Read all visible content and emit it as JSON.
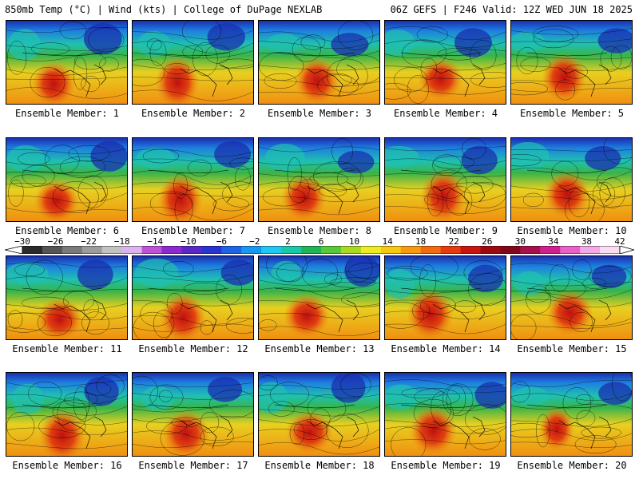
{
  "header": {
    "left": "850mb Temp (°C) | Wind (kts) | College of DuPage NEXLAB",
    "right": "06Z GEFS | F246 Valid: 12Z WED JUN 18 2025"
  },
  "panels": [
    {
      "label": "Ensemble Member: 1"
    },
    {
      "label": "Ensemble Member: 2"
    },
    {
      "label": "Ensemble Member: 3"
    },
    {
      "label": "Ensemble Member: 4"
    },
    {
      "label": "Ensemble Member: 5"
    },
    {
      "label": "Ensemble Member: 6"
    },
    {
      "label": "Ensemble Member: 7"
    },
    {
      "label": "Ensemble Member: 8"
    },
    {
      "label": "Ensemble Member: 9"
    },
    {
      "label": "Ensemble Member: 10"
    },
    {
      "label": "Ensemble Member: 11"
    },
    {
      "label": "Ensemble Member: 12"
    },
    {
      "label": "Ensemble Member: 13"
    },
    {
      "label": "Ensemble Member: 14"
    },
    {
      "label": "Ensemble Member: 15"
    },
    {
      "label": "Ensemble Member: 16"
    },
    {
      "label": "Ensemble Member: 17"
    },
    {
      "label": "Ensemble Member: 18"
    },
    {
      "label": "Ensemble Member: 19"
    },
    {
      "label": "Ensemble Member: 20"
    }
  ],
  "colorbar": {
    "ticks": [
      "−30",
      "−26",
      "−22",
      "−18",
      "−14",
      "−10",
      "−6",
      "−2",
      "2",
      "6",
      "10",
      "14",
      "18",
      "22",
      "26",
      "30",
      "34",
      "38",
      "42"
    ],
    "colors": [
      "#2a2a2a",
      "#555555",
      "#7a7a7a",
      "#9c9c9c",
      "#c2c2c2",
      "#dcb4ec",
      "#c052d8",
      "#8a2ad0",
      "#5a28c8",
      "#2a34d0",
      "#1e64e8",
      "#1898f0",
      "#1ec8f0",
      "#18c8a8",
      "#20b458",
      "#58c838",
      "#a8d820",
      "#ecec20",
      "#f8c810",
      "#f89a10",
      "#f06a10",
      "#e83a10",
      "#c81410",
      "#a00810",
      "#800818",
      "#a8104a",
      "#d02090",
      "#e860c8",
      "#f4a8e8",
      "#fadcf4"
    ]
  },
  "palette": {
    "cold_deep": "#1a2fb0",
    "cold": "#1e7fe0",
    "cool": "#1fc0b0",
    "mild": "#38b44a",
    "warm": "#e8d020",
    "hot": "#f09010",
    "very_hot": "#e04010",
    "extreme": "#c01010"
  }
}
